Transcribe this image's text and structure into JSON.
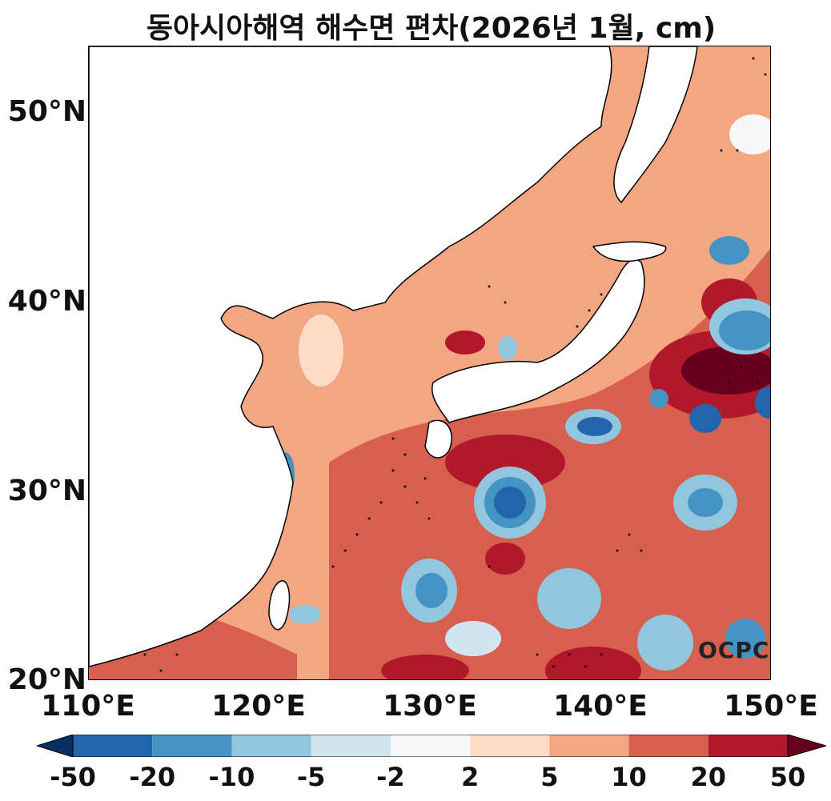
{
  "title": "동아시아해역 해수면 편차(2026년 1월, cm)",
  "y_ticks": [
    "50°N",
    "40°N",
    "30°N",
    "20°N"
  ],
  "x_ticks": [
    "110°E",
    "120°E",
    "130°E",
    "140°E",
    "150°E"
  ],
  "watermark": "OCPC",
  "colorbar": {
    "labels": [
      "-50",
      "-20",
      "-10",
      "-5",
      "-2",
      "2",
      "5",
      "10",
      "20",
      "50"
    ],
    "colors": [
      "#053061",
      "#2166ac",
      "#4393c3",
      "#92c5de",
      "#d1e5f0",
      "#f7f7f7",
      "#fddbc7",
      "#f4a582",
      "#d6604d",
      "#b2182b",
      "#67001f"
    ]
  },
  "map": {
    "lat_range": [
      20,
      53.5
    ],
    "lon_range": [
      110,
      150
    ],
    "land_color": "#ffffff",
    "coastline_color": "#000000"
  }
}
